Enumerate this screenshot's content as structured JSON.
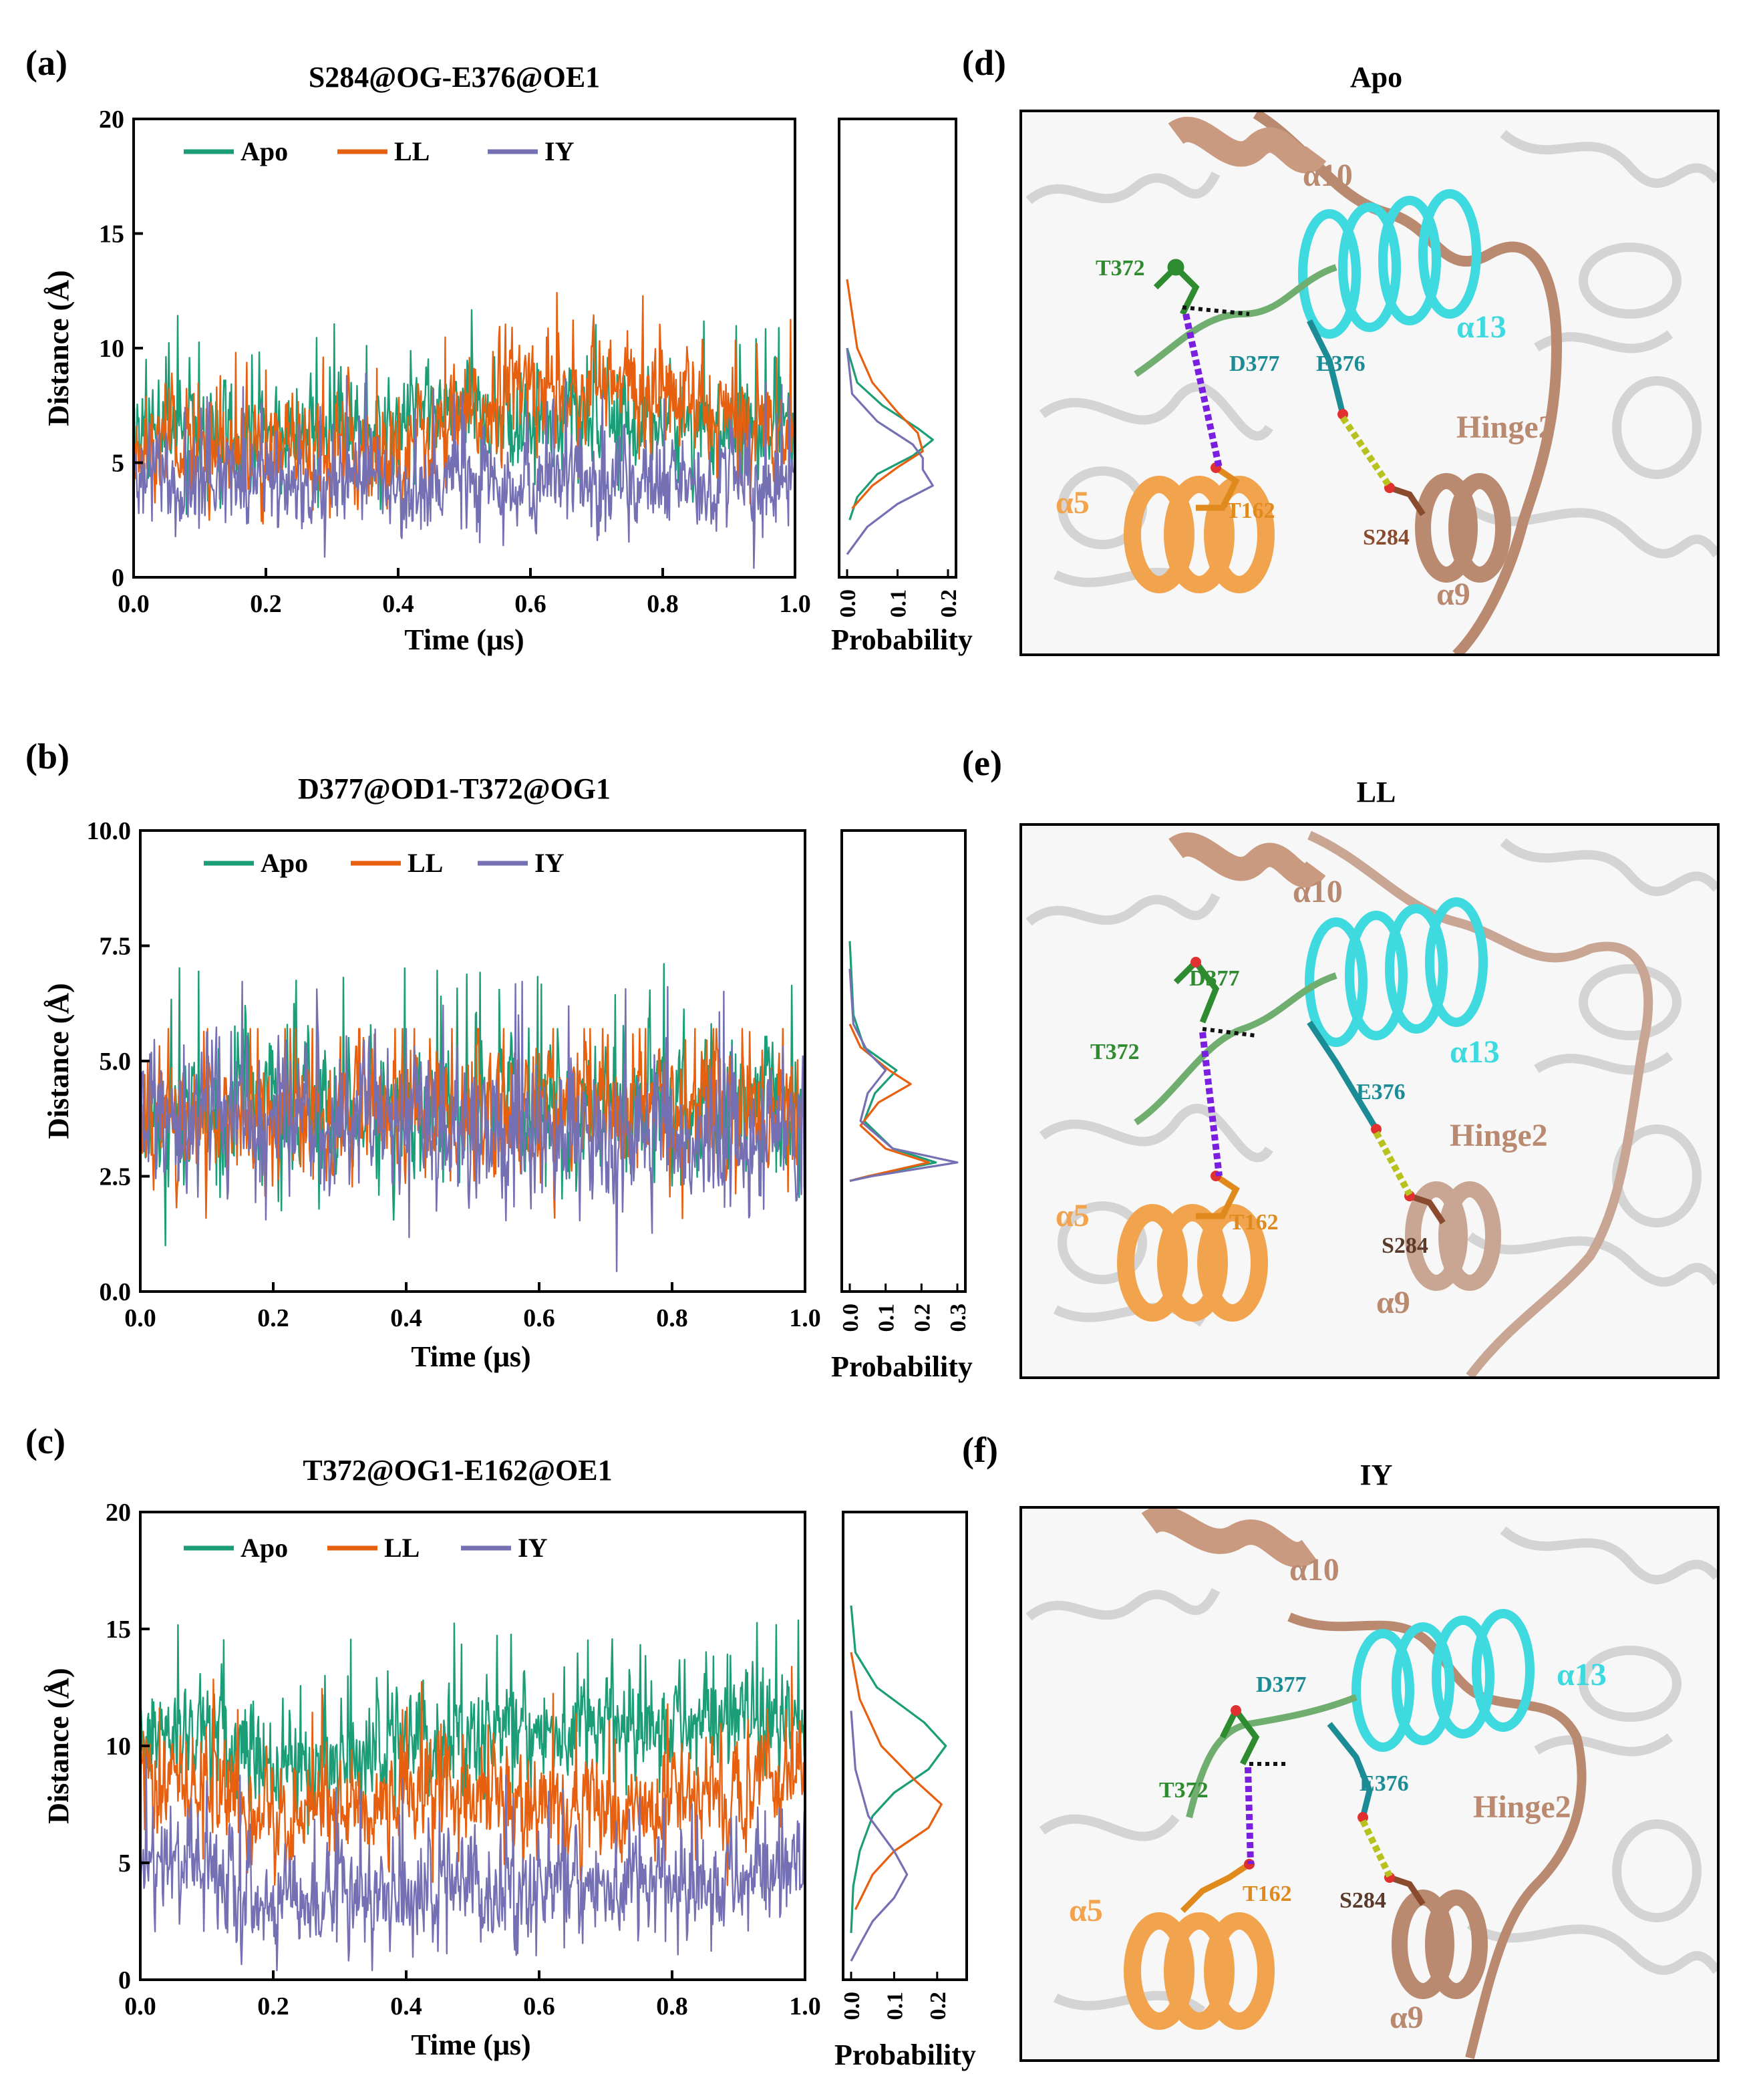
{
  "colors": {
    "apo": "#1b9e77",
    "ll": "#e7600f",
    "iy": "#7570b3",
    "t372": "#2f8b2f",
    "d377": "#2f8b2f",
    "e376": "#1b8c95",
    "a13": "#3fd9e0",
    "t162": "#e08a1e",
    "a5": "#f2a34d",
    "s284": "#8a4a2e",
    "hinge": "#b98a70",
    "hbond_purple": "#7a1fe0",
    "hbond_yellow": "#b8c21e"
  },
  "chart_data": [
    {
      "type": "line",
      "panel": "(a)",
      "title": "S284@OG-E376@OE1",
      "xlabel": "Time (μs)",
      "ylabel": "Distance (Å)",
      "xlim": [
        0,
        1.0
      ],
      "ylim": [
        0,
        20
      ],
      "xticks": [
        "0.0",
        "0.2",
        "0.4",
        "0.6",
        "0.8",
        "1.0"
      ],
      "yticks": [
        "0",
        "5",
        "10",
        "15",
        "20"
      ],
      "legend": [
        "Apo",
        "LL",
        "IY"
      ],
      "legend_position": "top",
      "series": [
        {
          "name": "Apo",
          "key": "apo",
          "knots_t": [
            0,
            0.1,
            0.2,
            0.3,
            0.4,
            0.45,
            0.5,
            0.6,
            0.7,
            0.8,
            0.9,
            1.0
          ],
          "knots_mean": [
            7.0,
            6.5,
            6.3,
            6.3,
            6.5,
            7.8,
            7.3,
            7.0,
            6.8,
            6.8,
            6.5,
            6.5
          ],
          "amp": 1.6,
          "max": 13.3
        },
        {
          "name": "LL",
          "key": "ll",
          "knots_t": [
            0,
            0.1,
            0.2,
            0.3,
            0.4,
            0.5,
            0.55,
            0.6,
            0.7,
            0.8,
            0.9,
            1.0
          ],
          "knots_mean": [
            5.8,
            5.5,
            5.5,
            5.5,
            5.8,
            6.5,
            8.2,
            8.3,
            8.4,
            8.0,
            6.8,
            6.5
          ],
          "amp": 1.8,
          "max": 13.4
        },
        {
          "name": "IY",
          "key": "iy",
          "knots_t": [
            0,
            0.5,
            1.0
          ],
          "knots_mean": [
            4.2,
            4.2,
            4.2
          ],
          "amp": 1.6,
          "max": 9.0
        }
      ],
      "hist": {
        "xlabel": "Probability",
        "xticks": [
          "0.0",
          "0.1",
          "0.2"
        ],
        "xlim": [
          0,
          0.2
        ],
        "series": [
          {
            "key": "apo",
            "d": [
              [
                10,
                0.0
              ],
              [
                8.5,
                0.02
              ],
              [
                7.5,
                0.07
              ],
              [
                6.5,
                0.14
              ],
              [
                6.0,
                0.17
              ],
              [
                5.3,
                0.13
              ],
              [
                4.5,
                0.06
              ],
              [
                3.5,
                0.02
              ],
              [
                2.5,
                0.005
              ]
            ]
          },
          {
            "key": "ll",
            "d": [
              [
                13,
                0.0
              ],
              [
                10,
                0.02
              ],
              [
                8.5,
                0.05
              ],
              [
                7.2,
                0.1
              ],
              [
                6.3,
                0.14
              ],
              [
                5.5,
                0.15
              ],
              [
                4.8,
                0.1
              ],
              [
                4.0,
                0.05
              ],
              [
                3.0,
                0.01
              ]
            ]
          },
          {
            "key": "iy",
            "d": [
              [
                10,
                0.0
              ],
              [
                8,
                0.01
              ],
              [
                6.8,
                0.06
              ],
              [
                5.8,
                0.13
              ],
              [
                5.2,
                0.15
              ],
              [
                4.7,
                0.15
              ],
              [
                4.0,
                0.17
              ],
              [
                3.2,
                0.1
              ],
              [
                2.2,
                0.04
              ],
              [
                1.0,
                0.0
              ]
            ]
          }
        ]
      }
    },
    {
      "type": "line",
      "panel": "(b)",
      "title": "D377@OD1-T372@OG1",
      "xlabel": "Time (μs)",
      "ylabel": "Distance (Å)",
      "xlim": [
        0,
        1.0
      ],
      "ylim": [
        0,
        10
      ],
      "xticks": [
        "0.0",
        "0.2",
        "0.4",
        "0.6",
        "0.8",
        "1.0"
      ],
      "yticks": [
        "0.0",
        "2.5",
        "5.0",
        "7.5",
        "10.0"
      ],
      "legend": [
        "Apo",
        "LL",
        "IY"
      ],
      "legend_position": "top",
      "series": [
        {
          "name": "Apo",
          "key": "apo",
          "knots_t": [
            0,
            0.5,
            1.0
          ],
          "knots_mean": [
            3.8,
            3.9,
            4.0
          ],
          "amp": 1.1,
          "max": 7.6
        },
        {
          "name": "LL",
          "key": "ll",
          "knots_t": [
            0,
            0.5,
            1.0
          ],
          "knots_mean": [
            3.8,
            3.9,
            4.0
          ],
          "amp": 1.1,
          "max": 5.7
        },
        {
          "name": "IY",
          "key": "iy",
          "knots_t": [
            0,
            0.4,
            0.5,
            1.0
          ],
          "knots_mean": [
            3.8,
            3.8,
            3.5,
            3.4
          ],
          "amp": 1.1,
          "max": 6.9
        }
      ],
      "hist": {
        "xlabel": "Probability",
        "xticks": [
          "0.0",
          "0.1",
          "0.2",
          "0.3"
        ],
        "xlim": [
          0,
          0.3
        ],
        "series": [
          {
            "key": "apo",
            "d": [
              [
                7.6,
                0.0
              ],
              [
                6.0,
                0.01
              ],
              [
                5.3,
                0.04
              ],
              [
                4.8,
                0.13
              ],
              [
                4.3,
                0.07
              ],
              [
                3.7,
                0.04
              ],
              [
                3.1,
                0.12
              ],
              [
                2.8,
                0.24
              ],
              [
                2.5,
                0.05
              ],
              [
                2.4,
                0.0
              ]
            ]
          },
          {
            "key": "ll",
            "d": [
              [
                5.8,
                0.0
              ],
              [
                5.3,
                0.03
              ],
              [
                4.8,
                0.11
              ],
              [
                4.5,
                0.17
              ],
              [
                4.1,
                0.08
              ],
              [
                3.6,
                0.03
              ],
              [
                3.1,
                0.1
              ],
              [
                2.8,
                0.22
              ],
              [
                2.5,
                0.05
              ],
              [
                2.4,
                0.0
              ]
            ]
          },
          {
            "key": "iy",
            "d": [
              [
                7.0,
                0.0
              ],
              [
                5.8,
                0.01
              ],
              [
                5.2,
                0.05
              ],
              [
                4.8,
                0.1
              ],
              [
                4.3,
                0.05
              ],
              [
                3.7,
                0.03
              ],
              [
                3.1,
                0.12
              ],
              [
                2.8,
                0.3
              ],
              [
                2.5,
                0.06
              ],
              [
                2.4,
                0.0
              ]
            ]
          }
        ]
      }
    },
    {
      "type": "line",
      "panel": "(c)",
      "title": "T372@OG1-E162@OE1",
      "xlabel": "Time (μs)",
      "ylabel": "Distance (Å)",
      "xlim": [
        0,
        1.0
      ],
      "ylim": [
        0,
        20
      ],
      "xticks": [
        "0.0",
        "0.2",
        "0.4",
        "0.6",
        "0.8",
        "1.0"
      ],
      "yticks": [
        "0",
        "5",
        "10",
        "15",
        "20"
      ],
      "legend": [
        "Apo",
        "LL",
        "IY"
      ],
      "legend_position": "top",
      "series": [
        {
          "name": "Apo",
          "key": "apo",
          "knots_t": [
            0,
            0.1,
            0.2,
            0.3,
            0.4,
            0.5,
            0.6,
            0.7,
            0.8,
            0.9,
            1.0
          ],
          "knots_mean": [
            10.5,
            10.5,
            9.0,
            9.5,
            9.8,
            10.5,
            10.5,
            10.8,
            11.0,
            11.0,
            10.5
          ],
          "amp": 1.7,
          "max": 16.0
        },
        {
          "name": "LL",
          "key": "ll",
          "knots_t": [
            0,
            0.1,
            0.2,
            0.3,
            0.4,
            0.5,
            0.6,
            0.7,
            0.8,
            0.9,
            1.0
          ],
          "knots_mean": [
            8.5,
            8.0,
            7.0,
            7.5,
            7.8,
            7.8,
            7.5,
            7.3,
            7.5,
            8.0,
            8.8
          ],
          "amp": 1.7,
          "max": 14.0
        },
        {
          "name": "IY",
          "key": "iy",
          "knots_t": [
            0,
            0.1,
            0.2,
            0.3,
            0.4,
            0.5,
            0.6,
            0.7,
            0.8,
            0.9,
            1.0
          ],
          "knots_mean": [
            5.0,
            4.5,
            3.3,
            3.5,
            3.6,
            3.8,
            3.8,
            4.0,
            4.0,
            4.3,
            4.5
          ],
          "amp": 1.7,
          "max": 11.0
        }
      ],
      "hist": {
        "xlabel": "Probability",
        "xticks": [
          "0.0",
          "0.1",
          "0.2"
        ],
        "xlim": [
          0,
          0.25
        ],
        "series": [
          {
            "key": "apo",
            "d": [
              [
                16,
                0.0
              ],
              [
                14,
                0.01
              ],
              [
                12.5,
                0.06
              ],
              [
                11,
                0.17
              ],
              [
                10,
                0.22
              ],
              [
                9,
                0.18
              ],
              [
                8,
                0.1
              ],
              [
                7,
                0.05
              ],
              [
                5.5,
                0.02
              ],
              [
                4,
                0.005
              ],
              [
                2,
                0.0
              ]
            ]
          },
          {
            "key": "ll",
            "d": [
              [
                14,
                0.0
              ],
              [
                12,
                0.02
              ],
              [
                10,
                0.07
              ],
              [
                8.5,
                0.15
              ],
              [
                7.5,
                0.21
              ],
              [
                6.5,
                0.18
              ],
              [
                5.5,
                0.1
              ],
              [
                4.5,
                0.05
              ],
              [
                3,
                0.01
              ]
            ]
          },
          {
            "key": "iy",
            "d": [
              [
                11.5,
                0.0
              ],
              [
                9,
                0.01
              ],
              [
                7,
                0.04
              ],
              [
                5.5,
                0.1
              ],
              [
                4.5,
                0.13
              ],
              [
                3.5,
                0.1
              ],
              [
                2.5,
                0.05
              ],
              [
                1.5,
                0.02
              ],
              [
                0.8,
                0.0
              ]
            ]
          }
        ]
      }
    }
  ],
  "panels": {
    "a": {
      "label": "(a)"
    },
    "b": {
      "label": "(b)"
    },
    "c": {
      "label": "(c)"
    },
    "d": {
      "label": "(d)",
      "title": "Apo"
    },
    "e": {
      "label": "(e)",
      "title": "LL"
    },
    "f": {
      "label": "(f)",
      "title": "IY"
    }
  },
  "structure_labels": {
    "a10": "α10",
    "a13": "α13",
    "a5": "α5",
    "a9": "α9",
    "hinge2": "Hinge2",
    "t372": "T372",
    "d377": "D377",
    "e376": "E376",
    "t162": "T162",
    "s284": "S284"
  }
}
